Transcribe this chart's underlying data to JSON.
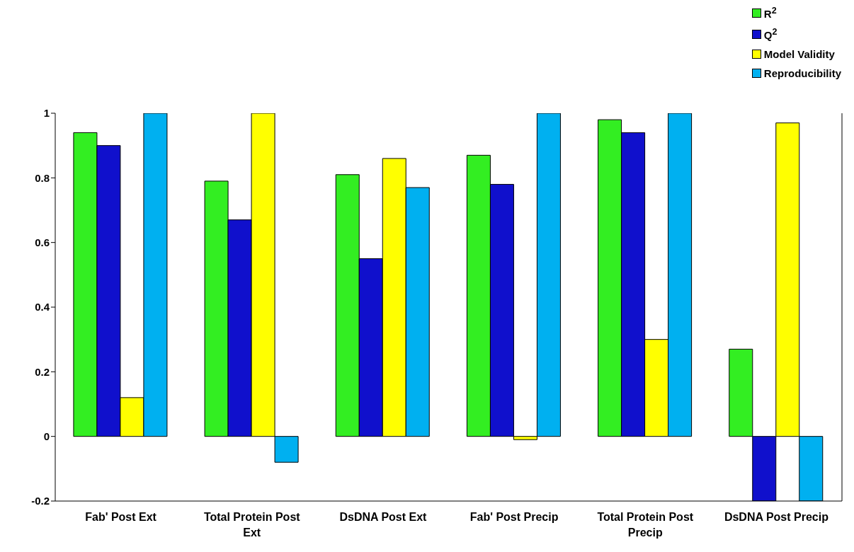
{
  "chart_data": {
    "type": "bar",
    "categories": [
      "Fab' Post Ext",
      "Total Protein Post Ext",
      "DsDNA Post Ext",
      "Fab' Post Precip",
      "Total Protein Post Precip",
      "DsDNA Post Precip"
    ],
    "series": [
      {
        "name": "R$^{2}$",
        "color": "#33ee22",
        "values": [
          0.94,
          0.79,
          0.81,
          0.87,
          0.98,
          0.27
        ]
      },
      {
        "name": "Q$^{2}$",
        "color": "#1010cc",
        "values": [
          0.9,
          0.67,
          0.55,
          0.78,
          0.94,
          -0.2
        ]
      },
      {
        "name": "Model Validity",
        "color": "#ffff00",
        "values": [
          0.12,
          1,
          0.86,
          -0.01,
          0.3,
          0.97
        ]
      },
      {
        "name": "Reproducibility",
        "color": "#00b0f0",
        "values": [
          1,
          -0.08,
          0.77,
          1,
          1,
          -0.2
        ]
      }
    ],
    "ylim": [
      -0.2,
      1
    ],
    "yticks": [
      -0.2,
      0,
      0.2,
      0.4,
      0.6,
      0.8,
      1
    ],
    "grid": false,
    "legend": "top right"
  }
}
